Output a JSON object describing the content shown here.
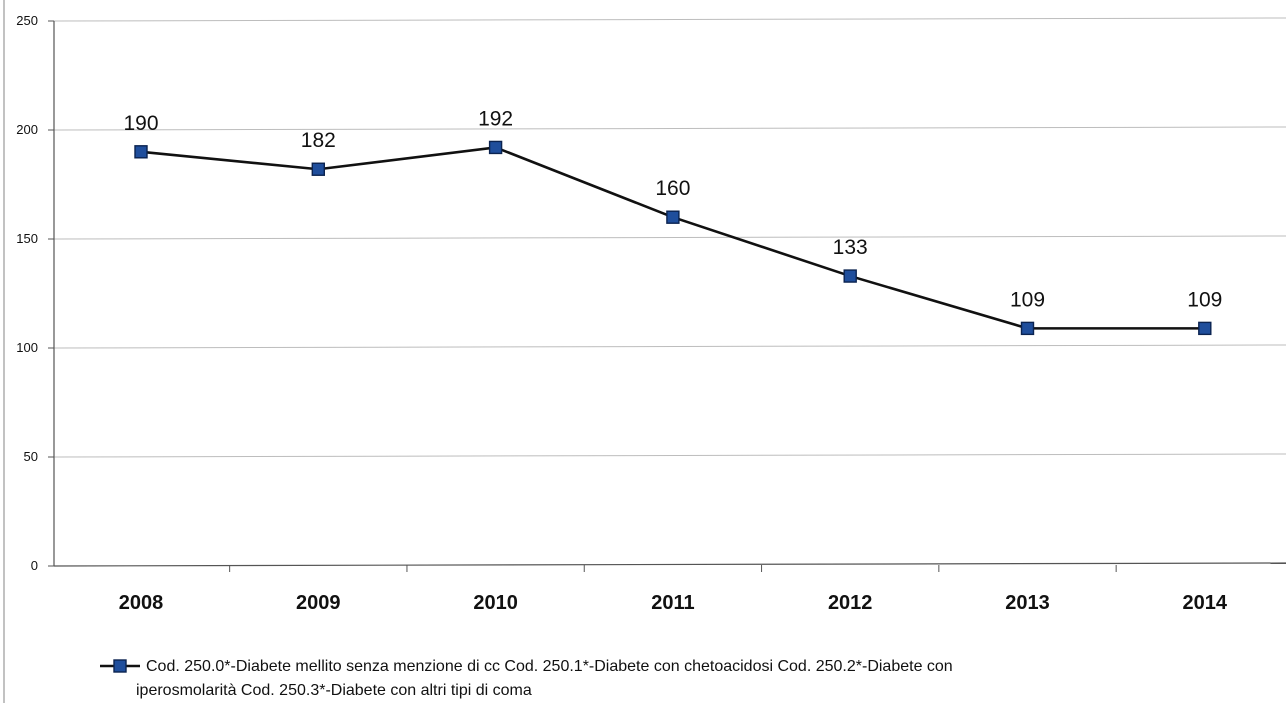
{
  "chart_data": {
    "type": "line",
    "categories": [
      "2008",
      "2009",
      "2010",
      "2011",
      "2012",
      "2013",
      "2014"
    ],
    "series": [
      {
        "name": "Cod. 250.0*-Diabete mellito senza menzione di cc Cod. 250.1*-Diabete con chetoacidosi Cod. 250.2*-Diabete con iperosmolarità Cod. 250.3*-Diabete con altri tipi di coma",
        "values": [
          190,
          182,
          192,
          160,
          133,
          109,
          109
        ],
        "color": "#1f4e9c"
      }
    ],
    "data_labels": [
      "190",
      "182",
      "192",
      "160",
      "133",
      "109",
      "109"
    ],
    "ylim": [
      0,
      250
    ],
    "yticks": [
      0,
      50,
      100,
      150,
      200,
      250
    ],
    "ytick_labels": [
      "0",
      "50",
      "100",
      "150",
      "200",
      "250"
    ],
    "grid": true,
    "legend_position": "bottom",
    "legend_lines": [
      "Cod. 250.0*-Diabete mellito senza menzione di cc Cod. 250.1*-Diabete con chetoacidosi Cod. 250.2*-Diabete con",
      "iperosmolarità Cod. 250.3*-Diabete con altri tipi di coma"
    ],
    "title": "",
    "xlabel": "",
    "ylabel": ""
  }
}
